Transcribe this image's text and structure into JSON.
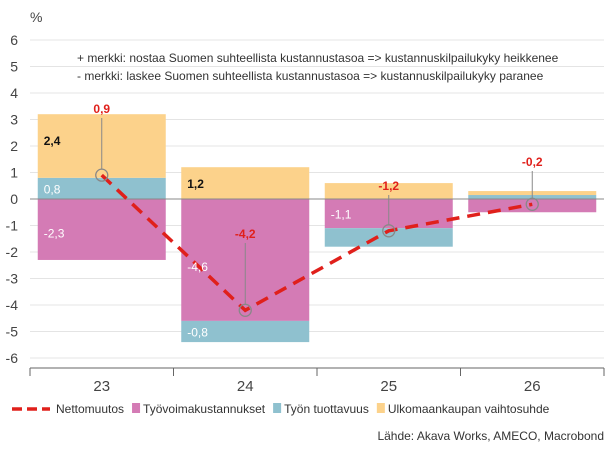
{
  "chart_data": {
    "type": "bar",
    "stacked": true,
    "ylabel": "%",
    "ylim": [
      -6,
      6
    ],
    "yticks": [
      6,
      5,
      4,
      3,
      2,
      1,
      0,
      -1,
      -2,
      -3,
      -4,
      -5,
      -6
    ],
    "categories": [
      "23",
      "24",
      "25",
      "26"
    ],
    "series": [
      {
        "name": "Työvoimakustannukset",
        "color": "#d47bb5",
        "values": [
          -2.3,
          -4.6,
          -1.1,
          -0.5
        ],
        "labels": [
          "-2,3",
          "-4,6",
          "-1,1",
          ""
        ]
      },
      {
        "name": "Työn tuottavuus",
        "color": "#8fc1cf",
        "values": [
          0.8,
          -0.8,
          -0.7,
          0.15
        ],
        "labels": [
          "0,8",
          "-0,8",
          "",
          ""
        ]
      },
      {
        "name": "Ulkomaankaupan vaihtosuhde",
        "color": "#fcd28b",
        "values": [
          2.4,
          1.2,
          0.6,
          0.15
        ],
        "labels": [
          "2,4",
          "1,2",
          "",
          ""
        ]
      }
    ],
    "line": {
      "name": "Nettomuutos",
      "color": "#e0201b",
      "values": [
        0.9,
        -4.2,
        -1.2,
        -0.2
      ],
      "labels": [
        "0,9",
        "-4,2",
        "-1,2",
        "-0,2"
      ]
    },
    "annotations": [
      "+ merkki: nostaa Suomen suhteellista kustannustasoa => kustannuskilpailukyky heikkenee",
      "- merkki: laskee Suomen suhteellista kustannustasoa => kustannuskilpailukyky paranee"
    ],
    "legend_position": "bottom-left",
    "grid": true
  },
  "source": "Lähde: Akava Works, AMECO, Macrobond"
}
